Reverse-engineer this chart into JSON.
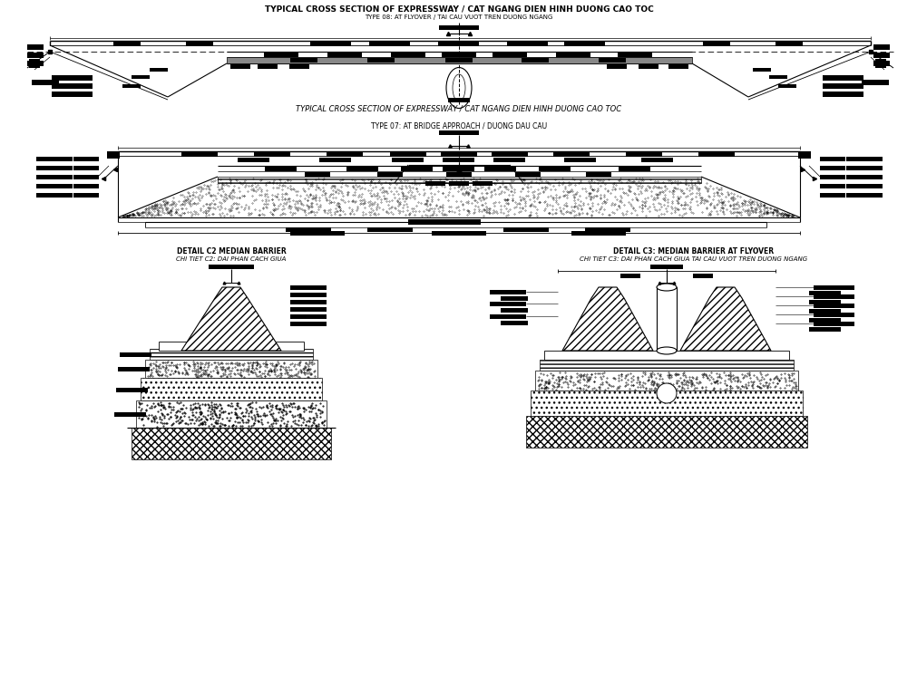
{
  "title1": "TYPICAL CROSS SECTION OF EXPRESSWAY / CAT NGANG DIEN HINH DUONG CAO TOC",
  "subtitle1": "TYPE 08: AT FLYOVER / TAI CAU VUOT TREN DUONG NGANG",
  "caption1": "TYPICAL CROSS SECTION OF EXPRESSWAY / CAT NGANG DIEN HINH DUONG CAO TOC",
  "title2": "TYPE 07: AT BRIDGE APPROACH / DUONG DAU CAU",
  "detail_c2_title1": "DETAIL C2 MEDIAN BARRIER",
  "detail_c2_title2": "CHI TIET C2: DAI PHAN CACH GIUA",
  "detail_c3_title1": "DETAIL C3: MEDIAN BARRIER AT FLYOVER",
  "detail_c3_title2": "CHI TIET C3: DAI PHAN CACH GIUA TAI CAU VUOT TREN DUONG NGANG",
  "bg_color": "#ffffff"
}
